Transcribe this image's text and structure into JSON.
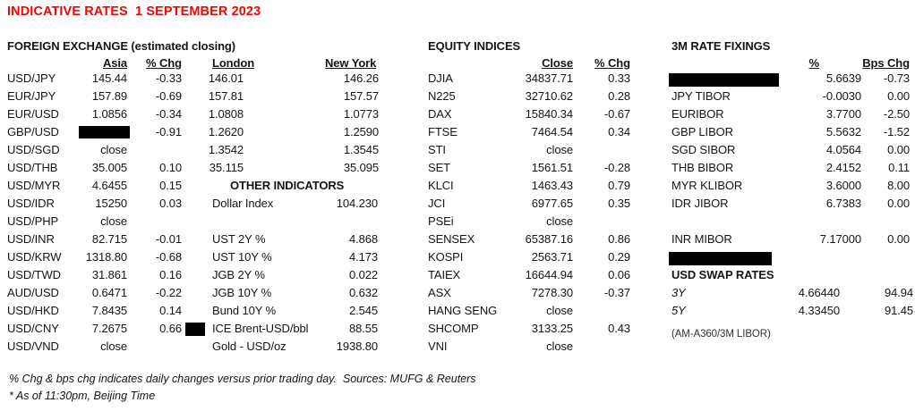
{
  "title": "INDICATIVE RATES  1 SEPTEMBER 2023",
  "accent_color": "#ff0000",
  "fx": {
    "heading": "FOREIGN EXCHANGE (estimated closing)",
    "columns": {
      "asia": "Asia",
      "chg": "% Chg",
      "london": "London",
      "ny": "New York"
    },
    "rows": [
      {
        "pair": "USD/JPY",
        "asia": "145.44",
        "chg": "-0.33",
        "london": "146.01",
        "ny": "146.26"
      },
      {
        "pair": "EUR/JPY",
        "asia": "157.89",
        "chg": "-0.69",
        "london": "157.81",
        "ny": "157.57"
      },
      {
        "pair": "EUR/USD",
        "asia": "1.0856",
        "chg": "-0.34",
        "london": "1.0808",
        "ny": "1.0773"
      },
      {
        "pair": "GBP/USD",
        "asia": "",
        "asia_redacted": true,
        "chg": "-0.91",
        "london": "1.2620",
        "ny": "1.2590"
      },
      {
        "pair": "USD/SGD",
        "asia": "close",
        "chg": "",
        "london": "1.3542",
        "ny": "1.3545"
      },
      {
        "pair": "USD/THB",
        "asia": "35.005",
        "chg": "0.10",
        "london": "35.115",
        "ny": "35.095"
      },
      {
        "pair": "USD/MYR",
        "asia": "4.6455",
        "chg": "0.15"
      },
      {
        "pair": "USD/IDR",
        "asia": "15250",
        "chg": "0.03"
      },
      {
        "pair": "USD/PHP",
        "asia": "close",
        "chg": ""
      },
      {
        "pair": "USD/INR",
        "asia": "82.715",
        "chg": "-0.01"
      },
      {
        "pair": "USD/KRW",
        "asia": "1318.80",
        "chg": "-0.68"
      },
      {
        "pair": "USD/TWD",
        "asia": "31.861",
        "chg": "0.16"
      },
      {
        "pair": "AUD/USD",
        "asia": "0.6471",
        "chg": "-0.22"
      },
      {
        "pair": "USD/HKD",
        "asia": "7.8435",
        "chg": "0.14"
      },
      {
        "pair": "USD/CNY",
        "asia": "7.2675",
        "chg": "0.66"
      },
      {
        "pair": "USD/VND",
        "asia": "close",
        "chg": ""
      }
    ]
  },
  "other_indicators": {
    "heading": "OTHER INDICATORS",
    "rows": [
      {
        "label": "Dollar Index",
        "value": "104.230"
      },
      {
        "label": "",
        "value": ""
      },
      {
        "label": "UST 2Y %",
        "value": "4.868"
      },
      {
        "label": "UST 10Y %",
        "value": "4.173"
      },
      {
        "label": "JGB 2Y %",
        "value": "0.022"
      },
      {
        "label": "JGB 10Y %",
        "value": "0.632"
      },
      {
        "label": "Bund 10Y %",
        "value": "2.545"
      },
      {
        "label": "ICE Brent-USD/bbl",
        "value": "88.55",
        "redact_before": true
      },
      {
        "label": "Gold - USD/oz",
        "value": "1938.80"
      }
    ]
  },
  "equity": {
    "heading": "EQUITY INDICES",
    "columns": {
      "close": "Close",
      "chg": "% Chg"
    },
    "rows": [
      {
        "name": "DJIA",
        "close": "34837.71",
        "chg": "0.33"
      },
      {
        "name": "N225",
        "close": "32710.62",
        "chg": "0.28"
      },
      {
        "name": "DAX",
        "close": "15840.34",
        "chg": "-0.67"
      },
      {
        "name": "FTSE",
        "close": "7464.54",
        "chg": "0.34"
      },
      {
        "name": "STI",
        "close": "close",
        "chg": ""
      },
      {
        "name": "SET",
        "close": "1561.51",
        "chg": "-0.28"
      },
      {
        "name": "KLCI",
        "close": "1463.43",
        "chg": "0.79"
      },
      {
        "name": "JCI",
        "close": "6977.65",
        "chg": "0.35"
      },
      {
        "name": "PSEi",
        "close": "close",
        "chg": ""
      },
      {
        "name": "SENSEX",
        "close": "65387.16",
        "chg": "0.86"
      },
      {
        "name": "KOSPI",
        "close": "2563.71",
        "chg": "0.29"
      },
      {
        "name": "TAIEX",
        "close": "16644.94",
        "chg": "0.06"
      },
      {
        "name": "ASX",
        "close": "7278.30",
        "chg": "-0.37"
      },
      {
        "name": "HANG SENG",
        "close": "close",
        "chg": ""
      },
      {
        "name": "SHCOMP",
        "close": "3133.25",
        "chg": "0.43"
      },
      {
        "name": "VNI",
        "close": "close",
        "chg": ""
      }
    ]
  },
  "fixings": {
    "heading": "3M RATE FIXINGS",
    "columns": {
      "pct": "%",
      "bps": "Bps Chg"
    },
    "rows": [
      {
        "name": "",
        "redacted": true,
        "pct": "5.6639",
        "bps": "-0.73"
      },
      {
        "name": "JPY TIBOR",
        "pct": "-0.0030",
        "bps": "0.00"
      },
      {
        "name": "EURIBOR",
        "pct": "3.7700",
        "bps": "-2.50"
      },
      {
        "name": "GBP LIBOR",
        "pct": "5.5632",
        "bps": "-1.52"
      },
      {
        "name": "SGD SIBOR",
        "pct": "4.0564",
        "bps": "0.00"
      },
      {
        "name": "THB BIBOR",
        "pct": "2.4152",
        "bps": "0.11"
      },
      {
        "name": "MYR KLIBOR",
        "pct": "3.6000",
        "bps": "8.00"
      },
      {
        "name": "IDR JIBOR",
        "pct": "6.7383",
        "bps": "0.00"
      },
      {
        "name": "",
        "pct": "",
        "bps": ""
      },
      {
        "name": "INR MIBOR",
        "pct": "7.17000",
        "bps": "0.00"
      },
      {
        "name": "",
        "redacted": true,
        "pct": "",
        "bps": ""
      }
    ]
  },
  "swaps": {
    "heading": "USD SWAP RATES",
    "rows": [
      {
        "tenor": "3Y",
        "rate": "4.66440",
        "bps": "94.94"
      },
      {
        "tenor": "5Y",
        "rate": "4.33450",
        "bps": "91.45"
      }
    ],
    "note": "(AM-A360/3M LIBOR)"
  },
  "footnotes": [
    "% Chg & bps chg indicates daily changes versus prior trading day.  Sources: MUFG & Reuters",
    "* As of 11:30pm, Beijing Time"
  ]
}
